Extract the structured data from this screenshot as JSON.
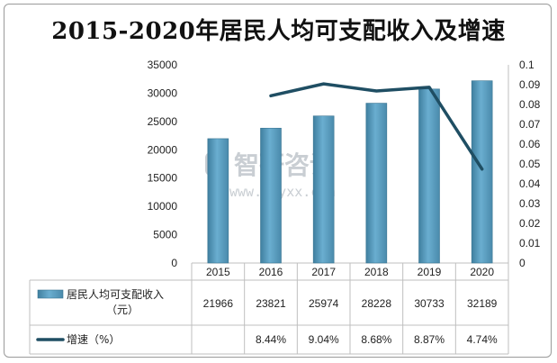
{
  "chart_data": {
    "type": "bar+line",
    "title": "2015-2020年居民人均可支配收入及增速",
    "categories": [
      "2015",
      "2016",
      "2017",
      "2018",
      "2019",
      "2020"
    ],
    "series": [
      {
        "name": "居民人均可支配收入（元）",
        "type": "bar",
        "axis": "left",
        "values": [
          21966,
          23821,
          25974,
          28228,
          30733,
          32189
        ],
        "color": "#5b9dc0"
      },
      {
        "name": "增速（%）",
        "type": "line",
        "axis": "right",
        "values": [
          null,
          0.0844,
          0.0904,
          0.0868,
          0.0887,
          0.0474
        ],
        "labels": [
          "",
          "8.44%",
          "9.04%",
          "8.68%",
          "8.87%",
          "4.74%"
        ],
        "color": "#1f4e63"
      }
    ],
    "y_left": {
      "min": 0,
      "max": 35000,
      "ticks": [
        "0",
        "5000",
        "10000",
        "15000",
        "20000",
        "25000",
        "30000",
        "35000"
      ]
    },
    "y_right": {
      "min": 0,
      "max": 0.1,
      "ticks": [
        "0",
        "0.01",
        "0.02",
        "0.03",
        "0.04",
        "0.05",
        "0.06",
        "0.07",
        "0.08",
        "0.09",
        "0.1"
      ]
    },
    "data_table": true,
    "grid": false
  },
  "watermark": {
    "brand": "智研咨询",
    "url": "www.chyxx.com",
    "color": "#c9ced3"
  }
}
